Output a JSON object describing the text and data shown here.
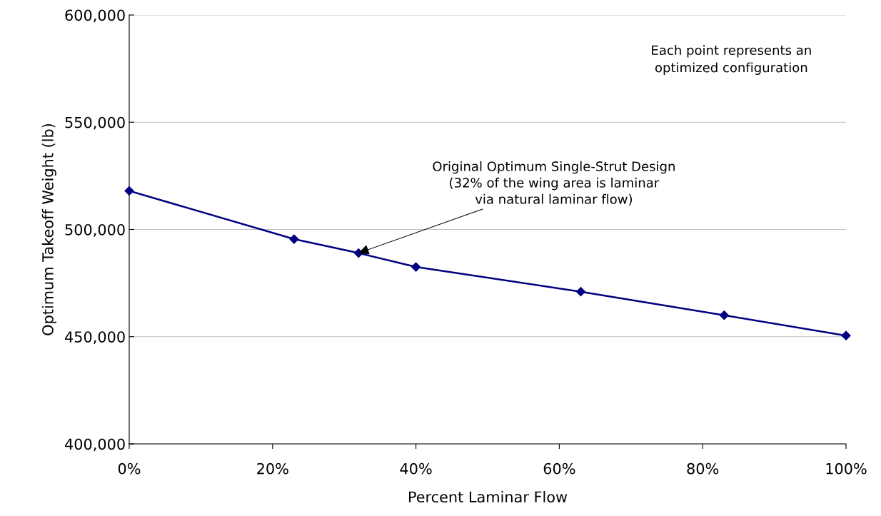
{
  "chart_data": {
    "type": "line",
    "xlabel": "Percent Laminar Flow",
    "ylabel": "Optimum Takeoff Weight (lb)",
    "x": [
      0,
      23,
      32,
      40,
      63,
      83,
      100
    ],
    "series": [
      {
        "color": "#000080",
        "values": [
          518000,
          495500,
          489000,
          482500,
          471000,
          460000,
          450500
        ]
      }
    ],
    "xlim": [
      0,
      100
    ],
    "xticks": [
      {
        "value": 0,
        "label": "0%"
      },
      {
        "value": 20,
        "label": "20%"
      },
      {
        "value": 40,
        "label": "40%"
      },
      {
        "value": 60,
        "label": "60%"
      },
      {
        "value": 80,
        "label": "80%"
      },
      {
        "value": 100,
        "label": "100%"
      }
    ],
    "ylim": [
      400000,
      600000
    ],
    "yticks": [
      {
        "value": 400000,
        "label": "400,000"
      },
      {
        "value": 450000,
        "label": "450,000"
      },
      {
        "value": 500000,
        "label": "500,000"
      },
      {
        "value": 550000,
        "label": "550,000"
      },
      {
        "value": 600000,
        "label": "600,000"
      }
    ],
    "grid": "y",
    "marker": "diamond",
    "line_style": "solid",
    "annotations": [
      {
        "text": "Original Optimum Single-Strut Design\n(32% of the wing area is laminar\nvia natural laminar flow)",
        "x": 32,
        "y": 489000
      },
      "Each point represents an\noptimized configuration"
    ]
  }
}
